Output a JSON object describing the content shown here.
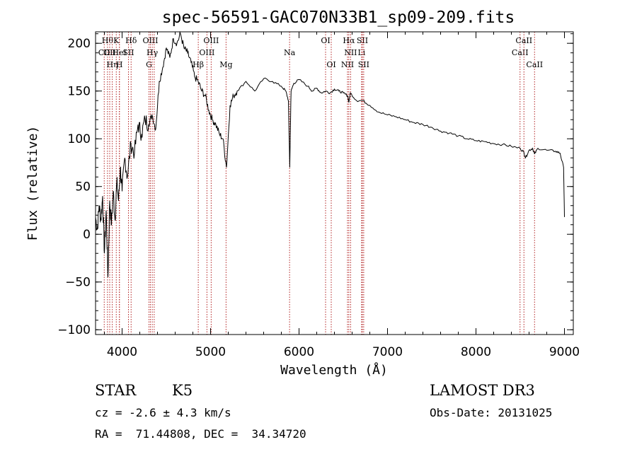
{
  "chart_data": {
    "type": "line",
    "title": "spec-56591-GAC070N33B1_sp09-209.fits",
    "xlabel": "Wavelength (Å)",
    "ylabel": "Flux (relative)",
    "xlim": [
      3700,
      9100
    ],
    "ylim": [
      -105,
      212
    ],
    "xticks": [
      4000,
      5000,
      6000,
      7000,
      8000,
      9000
    ],
    "yticks": [
      -100,
      -50,
      0,
      50,
      100,
      150,
      200
    ],
    "series": [
      {
        "name": "flux",
        "x": [
          3700,
          3720,
          3740,
          3760,
          3780,
          3800,
          3820,
          3840,
          3860,
          3880,
          3900,
          3920,
          3940,
          3960,
          3980,
          4000,
          4030,
          4060,
          4100,
          4140,
          4180,
          4220,
          4260,
          4300,
          4340,
          4380,
          4420,
          4460,
          4500,
          4540,
          4580,
          4620,
          4660,
          4700,
          4740,
          4780,
          4820,
          4860,
          4900,
          4940,
          4980,
          5020,
          5060,
          5100,
          5140,
          5180,
          5220,
          5260,
          5300,
          5400,
          5500,
          5600,
          5700,
          5800,
          5850,
          5880,
          5895,
          5910,
          5940,
          6000,
          6100,
          6150,
          6200,
          6250,
          6300,
          6350,
          6400,
          6450,
          6500,
          6550,
          6563,
          6580,
          6650,
          6720,
          6800,
          6900,
          7000,
          7100,
          7200,
          7300,
          7400,
          7500,
          7600,
          7700,
          7800,
          7900,
          8000,
          8100,
          8200,
          8300,
          8400,
          8500,
          8540,
          8560,
          8600,
          8640,
          8662,
          8700,
          8800,
          8900,
          8950,
          8990,
          9000
        ],
        "y": [
          18,
          5,
          30,
          15,
          40,
          -20,
          25,
          -45,
          35,
          10,
          45,
          15,
          55,
          35,
          70,
          45,
          80,
          60,
          95,
          85,
          115,
          105,
          120,
          115,
          125,
          110,
          160,
          175,
          195,
          185,
          205,
          200,
          210,
          195,
          190,
          180,
          165,
          160,
          150,
          145,
          130,
          120,
          115,
          105,
          100,
          70,
          135,
          145,
          150,
          160,
          150,
          163,
          160,
          155,
          150,
          140,
          70,
          150,
          158,
          162,
          155,
          150,
          153,
          148,
          150,
          148,
          152,
          150,
          148,
          145,
          138,
          148,
          140,
          140,
          135,
          128,
          125,
          123,
          120,
          117,
          115,
          112,
          108,
          106,
          103,
          100,
          98,
          97,
          95,
          94,
          92,
          90,
          86,
          80,
          88,
          90,
          84,
          90,
          88,
          87,
          85,
          70,
          18
        ],
        "color": "#000000"
      }
    ],
    "lines": [
      {
        "w": 3798,
        "row": 1,
        "label": "CII"
      },
      {
        "w": 3835,
        "row": 0,
        "label": "Hθ"
      },
      {
        "w": 3860,
        "row": 1,
        "label": "OII"
      },
      {
        "w": 3889,
        "row": 2,
        "label": "Hη"
      },
      {
        "w": 3934,
        "row": 0,
        "label": "K"
      },
      {
        "w": 3969,
        "row": 2,
        "label": "H"
      },
      {
        "w": 3970,
        "row": 1,
        "label": "HeI"
      },
      {
        "w": 4072,
        "row": 1,
        "label": "SII"
      },
      {
        "w": 4102,
        "row": 0,
        "label": "Hδ"
      },
      {
        "w": 4304,
        "row": 2,
        "label": "G"
      },
      {
        "w": 4320,
        "row": 0,
        "label": "OIII"
      },
      {
        "w": 4341,
        "row": 1,
        "label": "Hγ"
      },
      {
        "w": 4363,
        "row": 0,
        "label": ""
      },
      {
        "w": 4861,
        "row": 2,
        "label": "Hβ"
      },
      {
        "w": 4959,
        "row": 1,
        "label": "OIII"
      },
      {
        "w": 5007,
        "row": 0,
        "label": "OIII"
      },
      {
        "w": 5175,
        "row": 2,
        "label": "Mg"
      },
      {
        "w": 5893,
        "row": 1,
        "label": "Na"
      },
      {
        "w": 6300,
        "row": 0,
        "label": "OI"
      },
      {
        "w": 6364,
        "row": 2,
        "label": "OI"
      },
      {
        "w": 6548,
        "row": 2,
        "label": "NII"
      },
      {
        "w": 6563,
        "row": 0,
        "label": "Hα"
      },
      {
        "w": 6583,
        "row": 1,
        "label": "NII"
      },
      {
        "w": 6707,
        "row": 1,
        "label": "Li"
      },
      {
        "w": 6716,
        "row": 0,
        "label": "SII"
      },
      {
        "w": 6731,
        "row": 2,
        "label": "SII"
      },
      {
        "w": 8498,
        "row": 1,
        "label": "CaII"
      },
      {
        "w": 8542,
        "row": 0,
        "label": "CaII"
      },
      {
        "w": 8662,
        "row": 2,
        "label": "CaII"
      }
    ]
  },
  "info": {
    "class": "STAR",
    "subclass": "K5",
    "survey": "LAMOST DR3",
    "cz": "cz = -2.6 ± 4.3 km/s",
    "obs_date": "Obs-Date: 20131025",
    "coords": "RA =  71.44808, DEC =  34.34720"
  },
  "colors": {
    "axis": "#000000",
    "line_markers": "#b22222"
  }
}
